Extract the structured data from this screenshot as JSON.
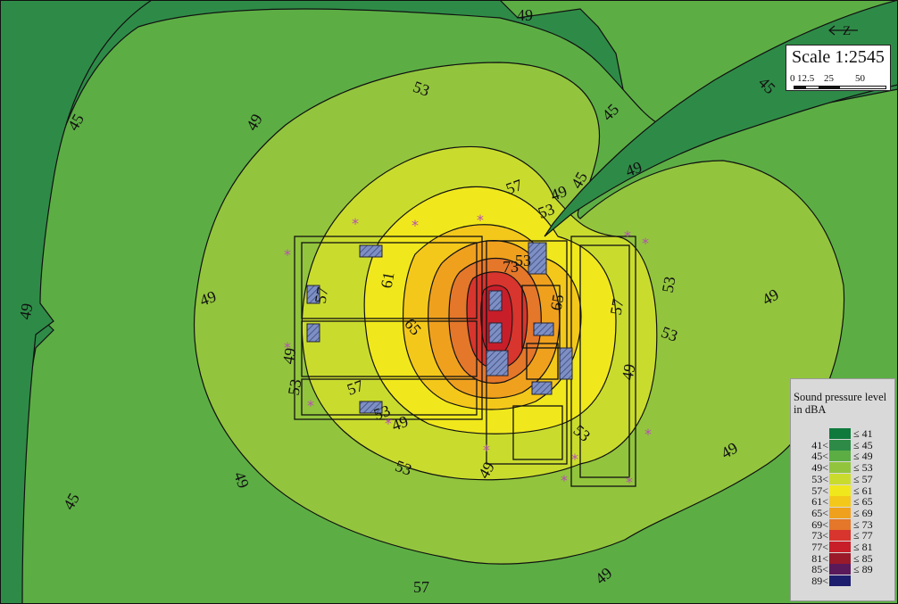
{
  "map": {
    "zone_colors": {
      "45": "#2e8b47",
      "49": "#5cae44",
      "53": "#92c53d",
      "57": "#c9dc2e",
      "61": "#f0e81c",
      "65": "#f4c81a",
      "69": "#efa11e",
      "73": "#e4772a",
      "77": "#d7352d",
      "81": "#c81e2a"
    },
    "contour_labels": [
      {
        "id": "c1",
        "text": "49"
      },
      {
        "id": "c2",
        "text": "45"
      },
      {
        "id": "c3",
        "text": "49"
      },
      {
        "id": "c4",
        "text": "53"
      },
      {
        "id": "c5",
        "text": "45"
      },
      {
        "id": "c6",
        "text": "45"
      },
      {
        "id": "c7",
        "text": "45"
      },
      {
        "id": "c8",
        "text": "49"
      },
      {
        "id": "c9",
        "text": "57"
      },
      {
        "id": "c10",
        "text": "53"
      },
      {
        "id": "c11",
        "text": "49"
      },
      {
        "id": "c12",
        "text": "61"
      },
      {
        "id": "c13",
        "text": "57"
      },
      {
        "id": "c14",
        "text": "65"
      },
      {
        "id": "c15",
        "text": "65"
      },
      {
        "id": "c16",
        "text": "73"
      },
      {
        "id": "c17",
        "text": "57"
      },
      {
        "id": "c18",
        "text": "53"
      },
      {
        "id": "c19",
        "text": "53"
      },
      {
        "id": "c20",
        "text": "49"
      },
      {
        "id": "c21",
        "text": "49"
      },
      {
        "id": "c22",
        "text": "49"
      },
      {
        "id": "c23",
        "text": "49"
      },
      {
        "id": "c24",
        "text": "53"
      },
      {
        "id": "c25",
        "text": "57"
      },
      {
        "id": "c26",
        "text": "53"
      },
      {
        "id": "c27",
        "text": "49"
      },
      {
        "id": "c28",
        "text": "49"
      },
      {
        "id": "c29",
        "text": "45"
      },
      {
        "id": "c30",
        "text": "49"
      },
      {
        "id": "c31",
        "text": "49"
      },
      {
        "id": "c32",
        "text": "53"
      },
      {
        "id": "c33",
        "text": "49"
      },
      {
        "id": "c34",
        "text": "49"
      },
      {
        "id": "c35",
        "text": "53"
      },
      {
        "id": "c36",
        "text": "57"
      },
      {
        "id": "c37",
        "text": "53"
      }
    ]
  },
  "scale": {
    "title": "Scale 1:2545",
    "ticks": [
      "0",
      "12.5",
      "25",
      "50"
    ],
    "north_label": "Z"
  },
  "legend": {
    "title": "Sound pressure level in dBA",
    "rows": [
      {
        "lo": "",
        "hi": "≤ 41",
        "color": "#0f7a3c"
      },
      {
        "lo": "41<",
        "hi": "≤ 45",
        "color": "#2e8b47"
      },
      {
        "lo": "45<",
        "hi": "≤ 49",
        "color": "#5cae44"
      },
      {
        "lo": "49<",
        "hi": "≤ 53",
        "color": "#92c53d"
      },
      {
        "lo": "53<",
        "hi": "≤ 57",
        "color": "#c9dc2e"
      },
      {
        "lo": "57<",
        "hi": "≤ 61",
        "color": "#f0e81c"
      },
      {
        "lo": "61<",
        "hi": "≤ 65",
        "color": "#f4c81a"
      },
      {
        "lo": "65<",
        "hi": "≤ 69",
        "color": "#efa11e"
      },
      {
        "lo": "69<",
        "hi": "≤ 73",
        "color": "#e4772a"
      },
      {
        "lo": "73<",
        "hi": "≤ 77",
        "color": "#d7352d"
      },
      {
        "lo": "77<",
        "hi": "≤ 81",
        "color": "#c81e2a"
      },
      {
        "lo": "81<",
        "hi": "≤ 85",
        "color": "#9a1a2a"
      },
      {
        "lo": "85<",
        "hi": "≤ 89",
        "color": "#5a1a5a"
      },
      {
        "lo": "89<",
        "hi": "",
        "color": "#1e1e6e"
      }
    ]
  }
}
